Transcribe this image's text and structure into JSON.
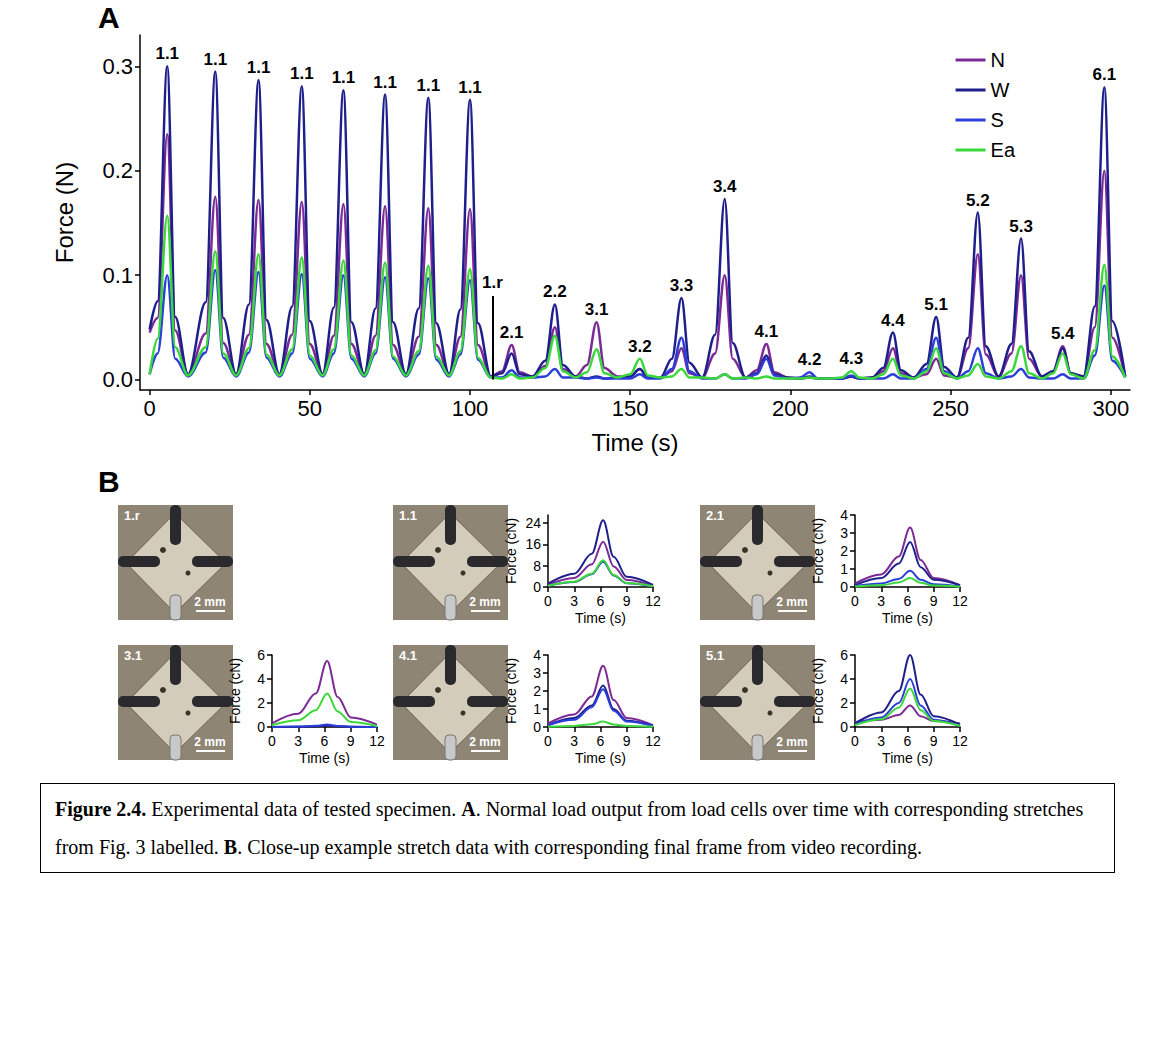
{
  "chart_data": [
    {
      "type": "line",
      "panel_label": "A",
      "x_label": "Time (s)",
      "y_label": "Force (N)",
      "x": [
        0,
        2.5,
        5.5,
        8,
        12,
        17.5,
        20.5,
        23,
        27,
        31,
        34,
        36.5,
        40.5,
        44.5,
        47.5,
        50,
        54,
        57.5,
        60.5,
        63,
        67,
        70.5,
        73.5,
        76,
        80,
        84,
        87,
        89.5,
        93.5,
        97,
        100,
        102.5,
        106.5,
        110,
        113,
        115.5,
        119.5,
        123.5,
        126.5,
        129,
        133,
        136.5,
        139.5,
        142,
        146,
        150,
        153,
        155.5,
        159.5,
        163,
        166,
        168.5,
        172.5,
        176.5,
        179.5,
        182,
        186,
        189.5,
        192.5,
        195,
        199,
        203,
        206,
        208.5,
        212.5,
        216,
        219,
        221.5,
        225.5,
        229,
        232,
        234.5,
        238.5,
        242.5,
        245.5,
        248,
        252,
        255.5,
        258.5,
        261,
        265,
        269,
        272,
        274.5,
        278.5,
        282,
        285,
        287.5,
        291.5,
        295,
        298,
        300.5,
        304.5
      ],
      "series": [
        {
          "name": "N",
          "color": "#7b2a96",
          "values": [
            0.045,
            0.059,
            0.235,
            0.047,
            0.005,
            0.044,
            0.175,
            0.035,
            0.005,
            0.043,
            0.172,
            0.034,
            0.005,
            0.043,
            0.17,
            0.034,
            0.005,
            0.042,
            0.168,
            0.034,
            0.005,
            0.042,
            0.166,
            0.033,
            0.005,
            0.041,
            0.164,
            0.033,
            0.005,
            0.041,
            0.163,
            0.033,
            0.003,
            0.008,
            0.033,
            0.007,
            0.003,
            0.013,
            0.05,
            0.01,
            0.003,
            0.014,
            0.055,
            0.011,
            0.003,
            0.003,
            0.01,
            0.002,
            0.002,
            0.008,
            0.03,
            0.006,
            0.002,
            0.025,
            0.1,
            0.02,
            0.002,
            0.009,
            0.034,
            0.007,
            0.002,
            0.001,
            0.002,
            0.001,
            0.001,
            0.001,
            0.003,
            0.001,
            0.002,
            0.008,
            0.03,
            0.006,
            0.002,
            0.005,
            0.02,
            0.004,
            0.002,
            0.03,
            0.12,
            0.024,
            0.003,
            0.025,
            0.1,
            0.02,
            0.003,
            0.008,
            0.032,
            0.006,
            0.003,
            0.05,
            0.2,
            0.04,
            0.003
          ]
        },
        {
          "name": "W",
          "color": "#1f1f8c",
          "values": [
            0.048,
            0.075,
            0.3,
            0.06,
            0.005,
            0.074,
            0.295,
            0.059,
            0.005,
            0.072,
            0.287,
            0.057,
            0.005,
            0.07,
            0.281,
            0.056,
            0.005,
            0.069,
            0.277,
            0.055,
            0.005,
            0.068,
            0.273,
            0.055,
            0.005,
            0.068,
            0.27,
            0.054,
            0.005,
            0.067,
            0.268,
            0.054,
            0.003,
            0.006,
            0.025,
            0.005,
            0.003,
            0.018,
            0.072,
            0.014,
            0.003,
            0.001,
            0.003,
            0.001,
            0.002,
            0.003,
            0.01,
            0.002,
            0.002,
            0.02,
            0.078,
            0.016,
            0.002,
            0.043,
            0.173,
            0.035,
            0.002,
            0.006,
            0.023,
            0.005,
            0.002,
            0.001,
            0.003,
            0.001,
            0.001,
            0.001,
            0.003,
            0.001,
            0.002,
            0.011,
            0.045,
            0.009,
            0.002,
            0.015,
            0.06,
            0.012,
            0.002,
            0.04,
            0.16,
            0.032,
            0.003,
            0.034,
            0.135,
            0.027,
            0.003,
            0.008,
            0.03,
            0.006,
            0.003,
            0.07,
            0.28,
            0.056,
            0.003
          ]
        },
        {
          "name": "S",
          "color": "#2b3fd8",
          "values": [
            0.005,
            0.025,
            0.1,
            0.02,
            0.003,
            0.026,
            0.105,
            0.021,
            0.003,
            0.026,
            0.103,
            0.021,
            0.003,
            0.025,
            0.101,
            0.02,
            0.003,
            0.025,
            0.1,
            0.02,
            0.003,
            0.025,
            0.098,
            0.02,
            0.003,
            0.024,
            0.097,
            0.019,
            0.003,
            0.024,
            0.095,
            0.019,
            0.002,
            0.002,
            0.009,
            0.002,
            0.002,
            0.003,
            0.01,
            0.002,
            0.002,
            0.001,
            0.002,
            0.001,
            0.001,
            0.001,
            0.005,
            0.001,
            0.001,
            0.01,
            0.04,
            0.008,
            0.001,
            0.001,
            0.005,
            0.001,
            0.001,
            0.005,
            0.02,
            0.004,
            0.001,
            0.002,
            0.007,
            0.001,
            0.001,
            0.001,
            0.004,
            0.001,
            0.001,
            0.001,
            0.005,
            0.001,
            0.001,
            0.01,
            0.04,
            0.008,
            0.001,
            0.008,
            0.03,
            0.006,
            0.001,
            0.003,
            0.01,
            0.002,
            0.001,
            0.001,
            0.005,
            0.001,
            0.001,
            0.023,
            0.09,
            0.018,
            0.002
          ]
        },
        {
          "name": "Ea",
          "color": "#3bd83b",
          "values": [
            0.005,
            0.039,
            0.157,
            0.031,
            0.004,
            0.031,
            0.123,
            0.025,
            0.004,
            0.03,
            0.12,
            0.024,
            0.004,
            0.029,
            0.117,
            0.023,
            0.004,
            0.029,
            0.114,
            0.023,
            0.004,
            0.028,
            0.112,
            0.022,
            0.004,
            0.027,
            0.109,
            0.022,
            0.004,
            0.027,
            0.106,
            0.021,
            0.002,
            0.001,
            0.005,
            0.001,
            0.002,
            0.011,
            0.042,
            0.008,
            0.002,
            0.007,
            0.029,
            0.006,
            0.002,
            0.005,
            0.02,
            0.004,
            0.002,
            0.003,
            0.01,
            0.002,
            0.002,
            0.001,
            0.005,
            0.001,
            0.002,
            0.001,
            0.003,
            0.001,
            0.001,
            0.001,
            0.002,
            0.001,
            0.001,
            0.002,
            0.008,
            0.002,
            0.001,
            0.005,
            0.02,
            0.004,
            0.001,
            0.008,
            0.03,
            0.006,
            0.001,
            0.004,
            0.015,
            0.003,
            0.001,
            0.008,
            0.032,
            0.006,
            0.001,
            0.006,
            0.025,
            0.005,
            0.001,
            0.028,
            0.11,
            0.022,
            0.002
          ]
        }
      ],
      "xlim": [
        -3,
        306
      ],
      "xticks": [
        0,
        50,
        100,
        150,
        200,
        250,
        300
      ],
      "ylim": [
        -0.01,
        0.33
      ],
      "yticks": [
        {
          "value": 0,
          "label": "0.0"
        },
        {
          "value": 0.1,
          "label": "0.1"
        },
        {
          "value": 0.2,
          "label": "0.2"
        },
        {
          "value": 0.3,
          "label": "0.3"
        }
      ],
      "grid": false,
      "legend": "upper right",
      "marker": "none",
      "peak_labels": [
        {
          "label": "1.1",
          "x": 5.5
        },
        {
          "label": "1.1",
          "x": 20.5
        },
        {
          "label": "1.1",
          "x": 34
        },
        {
          "label": "1.1",
          "x": 47.5
        },
        {
          "label": "1.1",
          "x": 60.5
        },
        {
          "label": "1.1",
          "x": 73.5
        },
        {
          "label": "1.1",
          "x": 87
        },
        {
          "label": "1.1",
          "x": 100
        },
        {
          "label": "2.1",
          "x": 113
        },
        {
          "label": "2.2",
          "x": 126.5
        },
        {
          "label": "3.1",
          "x": 139.5
        },
        {
          "label": "3.2",
          "x": 153
        },
        {
          "label": "3.3",
          "x": 166
        },
        {
          "label": "3.4",
          "x": 179.5
        },
        {
          "label": "4.1",
          "x": 192.5
        },
        {
          "label": "4.2",
          "x": 206
        },
        {
          "label": "4.3",
          "x": 219
        },
        {
          "label": "4.4",
          "x": 232
        },
        {
          "label": "5.1",
          "x": 245.5
        },
        {
          "label": "5.2",
          "x": 258.5
        },
        {
          "label": "5.3",
          "x": 272
        },
        {
          "label": "5.4",
          "x": 285
        },
        {
          "label": "6.1",
          "x": 298
        }
      ],
      "reference_line": {
        "label": "1.r",
        "x": 107,
        "y": [
          0,
          0.08
        ]
      }
    },
    {
      "type": "line",
      "x_label": "Time (s)",
      "y_label": "Force (cN)",
      "x": [
        0,
        3,
        5,
        6.3,
        7.5,
        9,
        12
      ],
      "series": [
        {
          "name": "N",
          "color": "#7b2a96",
          "values": [
            0.9,
            3.4,
            8.5,
            17,
            7.7,
            2.6,
            0.5
          ]
        },
        {
          "name": "W",
          "color": "#1f1f8c",
          "values": [
            1.3,
            5,
            12.5,
            25,
            11.3,
            3.8,
            0.8
          ]
        },
        {
          "name": "S",
          "color": "#2b3fd8",
          "values": [
            0.5,
            1.9,
            4.8,
            9.5,
            4.3,
            1.4,
            0.3
          ]
        },
        {
          "name": "Ea",
          "color": "#3bd83b",
          "values": [
            0.5,
            2,
            5,
            10,
            4.5,
            1.5,
            0.3
          ]
        }
      ],
      "xlim": [
        0,
        12
      ],
      "xticks": [
        0,
        3,
        6,
        9,
        12
      ],
      "ylim": [
        0,
        27
      ],
      "yticks": [
        0,
        8,
        16,
        24
      ],
      "grid": false,
      "marker": "none"
    },
    {
      "type": "line",
      "x_label": "Time (s)",
      "y_label": "Force (cN)",
      "x": [
        0,
        3,
        5,
        6.3,
        7.5,
        9,
        12
      ],
      "series": [
        {
          "name": "N",
          "color": "#7b2a96",
          "values": [
            0.2,
            0.7,
            1.7,
            3.3,
            1.5,
            0.5,
            0.1
          ]
        },
        {
          "name": "W",
          "color": "#1f1f8c",
          "values": [
            0.1,
            0.5,
            1.3,
            2.5,
            1.1,
            0.4,
            0.1
          ]
        },
        {
          "name": "S",
          "color": "#2b3fd8",
          "values": [
            0.05,
            0.2,
            0.45,
            0.9,
            0.4,
            0.15,
            0.03
          ]
        },
        {
          "name": "Ea",
          "color": "#3bd83b",
          "values": [
            0.03,
            0.1,
            0.25,
            0.5,
            0.23,
            0.08,
            0.02
          ]
        }
      ],
      "xlim": [
        0,
        12
      ],
      "xticks": [
        0,
        3,
        6,
        9,
        12
      ],
      "ylim": [
        0,
        4
      ],
      "yticks": [
        0,
        1,
        2,
        3,
        4
      ],
      "grid": false,
      "marker": "none"
    },
    {
      "type": "line",
      "x_label": "Time (s)",
      "y_label": "Force (cN)",
      "x": [
        0,
        3,
        5,
        6.3,
        7.5,
        9,
        12
      ],
      "series": [
        {
          "name": "N",
          "color": "#7b2a96",
          "values": [
            0.3,
            1.1,
            2.8,
            5.5,
            2.5,
            0.8,
            0.2
          ]
        },
        {
          "name": "W",
          "color": "#1f1f8c",
          "values": [
            0,
            0.02,
            0.05,
            0.1,
            0.05,
            0.02,
            0
          ]
        },
        {
          "name": "S",
          "color": "#2b3fd8",
          "values": [
            0.01,
            0.04,
            0.1,
            0.2,
            0.09,
            0.03,
            0.01
          ]
        },
        {
          "name": "Ea",
          "color": "#3bd83b",
          "values": [
            0.14,
            0.56,
            1.4,
            2.8,
            1.3,
            0.42,
            0.08
          ]
        }
      ],
      "xlim": [
        0,
        12
      ],
      "xticks": [
        0,
        3,
        6,
        9,
        12
      ],
      "ylim": [
        0,
        6
      ],
      "yticks": [
        0,
        2,
        4,
        6
      ],
      "grid": false,
      "marker": "none"
    },
    {
      "type": "line",
      "x_label": "Time (s)",
      "y_label": "Force (cN)",
      "x": [
        0,
        3,
        5,
        6.3,
        7.5,
        9,
        12
      ],
      "series": [
        {
          "name": "N",
          "color": "#7b2a96",
          "values": [
            0.2,
            0.7,
            1.7,
            3.4,
            1.5,
            0.5,
            0.1
          ]
        },
        {
          "name": "W",
          "color": "#1f1f8c",
          "values": [
            0.1,
            0.5,
            1.2,
            2.3,
            1,
            0.35,
            0.07
          ]
        },
        {
          "name": "S",
          "color": "#2b3fd8",
          "values": [
            0.1,
            0.4,
            1.1,
            2.1,
            0.9,
            0.3,
            0.06
          ]
        },
        {
          "name": "Ea",
          "color": "#3bd83b",
          "values": [
            0.02,
            0.06,
            0.15,
            0.3,
            0.14,
            0.05,
            0.01
          ]
        }
      ],
      "xlim": [
        0,
        12
      ],
      "xticks": [
        0,
        3,
        6,
        9,
        12
      ],
      "ylim": [
        0,
        4
      ],
      "yticks": [
        0,
        1,
        2,
        3,
        4
      ],
      "grid": false,
      "marker": "none"
    },
    {
      "type": "line",
      "x_label": "Time (s)",
      "y_label": "Force (cN)",
      "x": [
        0,
        3,
        5,
        6.3,
        7.5,
        9,
        12
      ],
      "series": [
        {
          "name": "N",
          "color": "#7b2a96",
          "values": [
            0.4,
            0.6,
            1,
            1.8,
            0.9,
            0.5,
            0.3
          ]
        },
        {
          "name": "W",
          "color": "#1f1f8c",
          "values": [
            0.3,
            1.2,
            3,
            6,
            2.7,
            0.9,
            0.2
          ]
        },
        {
          "name": "S",
          "color": "#2b3fd8",
          "values": [
            0.2,
            0.8,
            2,
            4,
            1.8,
            0.6,
            0.1
          ]
        },
        {
          "name": "Ea",
          "color": "#3bd83b",
          "values": [
            0.16,
            0.64,
            1.6,
            3.2,
            1.4,
            0.5,
            0.1
          ]
        }
      ],
      "xlim": [
        0,
        12
      ],
      "xticks": [
        0,
        3,
        6,
        9,
        12
      ],
      "ylim": [
        0,
        6
      ],
      "yticks": [
        0,
        2,
        4,
        6
      ],
      "grid": false,
      "marker": "none"
    }
  ],
  "figure": {
    "panel_label": "B",
    "photos": [
      {
        "label": "1.r",
        "scale_bar": "2 mm"
      },
      {
        "label": "1.1",
        "scale_bar": "2 mm"
      },
      {
        "label": "2.1",
        "scale_bar": "2 mm"
      },
      {
        "label": "3.1",
        "scale_bar": "2 mm"
      },
      {
        "label": "4.1",
        "scale_bar": "2 mm"
      },
      {
        "label": "5.1",
        "scale_bar": "2 mm"
      }
    ],
    "caption": [
      {
        "text": "Figure 2.4.",
        "bold": true
      },
      {
        "text": " Experimental data of tested specimen. ",
        "bold": false
      },
      {
        "text": "A",
        "bold": true
      },
      {
        "text": ". Normal load output from load cells over time with corresponding stretches from Fig. 3 labelled. ",
        "bold": false
      },
      {
        "text": "B",
        "bold": true
      },
      {
        "text": ". Close-up example stretch data with corresponding final frame from video recording.",
        "bold": false
      }
    ]
  }
}
